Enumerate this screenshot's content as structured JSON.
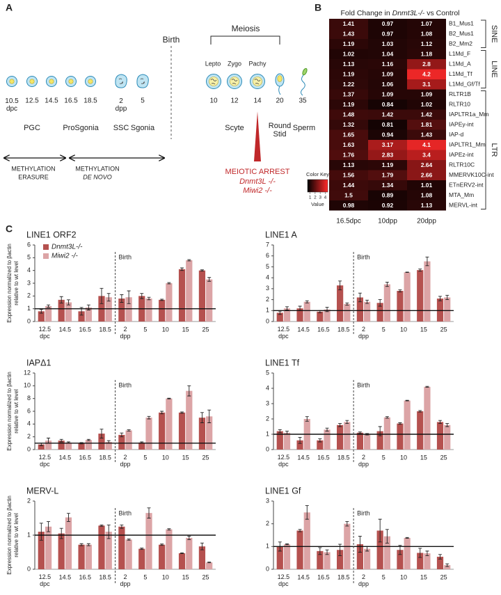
{
  "panel_labels": [
    "A",
    "B",
    "C"
  ],
  "panel_a": {
    "birth": "Birth",
    "meiosis": "Meiosis",
    "substages": [
      "Lepto",
      "Zygo",
      "Pachy"
    ],
    "stages": [
      "10.5\ndpc",
      "12.5",
      "14.5",
      "16.5",
      "18.5",
      "2\ndpp",
      "5",
      "10",
      "12",
      "14",
      "20",
      "35"
    ],
    "groups": [
      "PGC",
      "ProSgonia",
      "SSC",
      "Sgonia",
      "Scyte",
      "Round\nStid",
      "Sperm"
    ],
    "methylation": [
      {
        "title": "METHYLATION",
        "subtitle": "ERASURE"
      },
      {
        "title": "METHYLATION",
        "subtitle": "DE NOVO"
      }
    ],
    "arrest": {
      "title": "MEIOTIC ARREST",
      "mutants": [
        "Dnmt3L -/-",
        "Miwi2 -/-"
      ]
    }
  },
  "chart_data": [
    {
      "type": "heatmap",
      "title": [
        "Fold Change in ",
        "Dnmt3L-/-",
        " vs Control"
      ],
      "categories": [
        "B1_Mus1",
        "B2_Mus1",
        "B2_Mm2",
        "L1Md_F",
        "L1Md_A",
        "L1Md_Tf",
        "L1Md_Gf/Tf",
        "RLTR1B",
        "RLTR10",
        "IAPLTR1a_Mm",
        "IAPEy-int",
        "IAP-d",
        "IAPLTR1_Mm",
        "IAPEz-int",
        "RLTR10C",
        "MMERVK10C-int",
        "ETnERV2-int",
        "MTA_Mm",
        "MERVL-int"
      ],
      "columns": [
        "16.5dpc",
        "10dpp",
        "20dpp"
      ],
      "values": [
        [
          1.41,
          0.97,
          1.07
        ],
        [
          1.43,
          0.97,
          1.08
        ],
        [
          1.19,
          1.03,
          1.12
        ],
        [
          1.02,
          1.04,
          1.18
        ],
        [
          1.13,
          1.16,
          2.8
        ],
        [
          1.19,
          1.09,
          4.2
        ],
        [
          1.22,
          1.06,
          3.1
        ],
        [
          1.37,
          1.09,
          1.09
        ],
        [
          1.19,
          0.84,
          1.02
        ],
        [
          1.48,
          1.42,
          1.42
        ],
        [
          1.32,
          0.81,
          1.81
        ],
        [
          1.65,
          0.94,
          1.43
        ],
        [
          1.63,
          3.17,
          4.1
        ],
        [
          1.76,
          2.83,
          3.4
        ],
        [
          1.13,
          1.19,
          2.64
        ],
        [
          1.56,
          1.79,
          2.66
        ],
        [
          1.44,
          1.34,
          1.01
        ],
        [
          1.5,
          0.89,
          1.08
        ],
        [
          0.98,
          0.92,
          1.13
        ]
      ],
      "groups": [
        {
          "name": "SINE",
          "rows": [
            0,
            2
          ]
        },
        {
          "name": "LINE",
          "rows": [
            3,
            6
          ]
        },
        {
          "name": "LTR",
          "rows": [
            7,
            18
          ]
        }
      ],
      "clim": [
        0.5,
        4.5
      ],
      "colors": [
        "#000000",
        "#ff2a2a"
      ],
      "colorbar": {
        "title": "Color Key",
        "label": "Value",
        "ticks": [
          1,
          2,
          3,
          4
        ]
      }
    },
    {
      "type": "bar",
      "title": "LINE1 ORF2",
      "legend": true,
      "y_label": [
        "Expression normalized to βactin",
        "relative to wt level"
      ],
      "categories": [
        "12.5\ndpc",
        "14.5",
        "16.5",
        "18.5",
        "2\ndpp",
        "5",
        "10",
        "15",
        "25"
      ],
      "series": [
        {
          "name": "Dnmt3L-/-",
          "color": "#b5514f",
          "values": [
            0.8,
            1.7,
            0.8,
            2.0,
            1.8,
            2.0,
            1.7,
            4.1,
            4.0
          ],
          "errors": [
            0.15,
            0.25,
            0.3,
            0.6,
            0.3,
            0.2,
            0.05,
            0.1,
            0.05
          ]
        },
        {
          "name": "Miwi2 -/-",
          "color": "#dca4a6",
          "values": [
            1.2,
            1.5,
            1.1,
            1.9,
            1.9,
            1.8,
            3.0,
            4.8,
            3.3
          ],
          "errors": [
            0.1,
            0.2,
            0.2,
            0.3,
            0.5,
            0.1,
            0.05,
            0.05,
            0.15
          ]
        }
      ],
      "annotation": "Birth",
      "reference_line": 1,
      "ylim": [
        0,
        6
      ],
      "yticks": [
        0,
        1,
        2,
        3,
        4,
        5,
        6
      ]
    },
    {
      "type": "bar",
      "title": "LINE1 A",
      "categories": [
        "12.5\ndpc",
        "14.5",
        "16.5",
        "18.5",
        "2\ndpp",
        "5",
        "10",
        "15",
        "25"
      ],
      "series": [
        {
          "color": "#b5514f",
          "values": [
            0.8,
            1.2,
            0.9,
            3.3,
            2.2,
            1.7,
            2.8,
            4.7,
            2.1
          ],
          "errors": [
            0.15,
            0.2,
            0.1,
            0.4,
            0.4,
            0.3,
            0.1,
            0.1,
            0.2
          ]
        },
        {
          "color": "#dca4a6",
          "values": [
            1.2,
            1.8,
            1.1,
            1.6,
            1.8,
            3.4,
            4.5,
            5.5,
            2.2
          ],
          "errors": [
            0.15,
            0.1,
            0.2,
            0.1,
            0.15,
            0.2,
            0.02,
            0.4,
            0.2
          ]
        }
      ],
      "annotation": "Birth",
      "reference_line": 1,
      "ylim": [
        0,
        7
      ],
      "yticks": [
        0,
        1,
        2,
        3,
        4,
        5,
        6,
        7
      ]
    },
    {
      "type": "bar",
      "title": "IAPΔ1",
      "y_label": [
        "Expression normalized to βactin",
        "relative to wt level"
      ],
      "categories": [
        "12.5\ndpc",
        "14.5",
        "16.5",
        "18.5",
        "2\ndpp",
        "5",
        "10",
        "15",
        "25"
      ],
      "series": [
        {
          "color": "#b5514f",
          "values": [
            0.8,
            1.4,
            1.0,
            2.5,
            2.3,
            1.1,
            5.8,
            5.8,
            5.0
          ],
          "errors": [
            0.2,
            0.2,
            0.1,
            0.7,
            0.3,
            0.1,
            0.2,
            0.1,
            0.8
          ]
        },
        {
          "color": "#dca4a6",
          "values": [
            1.4,
            1.1,
            1.5,
            1.2,
            3.0,
            5.0,
            8.0,
            9.2,
            5.2
          ],
          "errors": [
            0.4,
            0.1,
            0.1,
            0.2,
            0.1,
            0.2,
            0.05,
            0.8,
            1.0
          ]
        }
      ],
      "annotation": "Birth",
      "reference_line": 1,
      "ylim": [
        0,
        12
      ],
      "yticks": [
        0,
        2,
        4,
        6,
        8,
        10,
        12
      ]
    },
    {
      "type": "bar",
      "title": "LINE1 Tf",
      "categories": [
        "12.5\ndpc",
        "14.5",
        "16.5",
        "18.5",
        "2\ndpp",
        "5",
        "10",
        "15",
        "25"
      ],
      "series": [
        {
          "color": "#b5514f",
          "values": [
            1.2,
            0.6,
            0.6,
            1.6,
            1.1,
            1.2,
            1.7,
            2.5,
            1.8
          ],
          "errors": [
            0.1,
            0.2,
            0.1,
            0.1,
            0.05,
            0.3,
            0.05,
            0.05,
            0.1
          ]
        },
        {
          "color": "#dca4a6",
          "values": [
            1.1,
            2.0,
            1.3,
            1.8,
            1.0,
            2.1,
            3.2,
            4.1,
            1.6
          ],
          "errors": [
            0.1,
            0.15,
            0.1,
            0.1,
            0.05,
            0.05,
            0.02,
            0.03,
            0.1
          ]
        }
      ],
      "annotation": "Birth",
      "reference_line": 1,
      "ylim": [
        0,
        5
      ],
      "yticks": [
        0,
        1,
        2,
        3,
        4,
        5
      ]
    },
    {
      "type": "bar",
      "title": "MERV-L",
      "y_label": [
        "Expression normalized to βactin",
        "relative to wt level"
      ],
      "categories": [
        "12.5\ndpc",
        "14.5",
        "16.5",
        "18.5",
        "2\ndpp",
        "5",
        "10",
        "15",
        "25"
      ],
      "series": [
        {
          "color": "#b5514f",
          "values": [
            1.1,
            1.05,
            0.72,
            1.28,
            1.25,
            0.6,
            0.72,
            0.47,
            0.67
          ],
          "errors": [
            0.25,
            0.15,
            0.03,
            0.02,
            0.05,
            0.02,
            0.02,
            0.01,
            0.1
          ]
        },
        {
          "color": "#dca4a6",
          "values": [
            1.25,
            1.52,
            0.72,
            1.1,
            0.87,
            1.65,
            1.17,
            0.92,
            0.2
          ],
          "errors": [
            0.15,
            0.12,
            0.03,
            0.2,
            0.02,
            0.15,
            0.02,
            0.05,
            0.01
          ]
        }
      ],
      "annotation": "Birth",
      "reference_line": 1,
      "ylim": [
        0,
        2
      ],
      "yticks": [
        0,
        1,
        2
      ]
    },
    {
      "type": "bar",
      "title": "LINE1 Gf",
      "categories": [
        "12.5\ndpc",
        "14.5",
        "16.5",
        "18.5",
        "2\ndpp",
        "5",
        "10",
        "15",
        "25"
      ],
      "series": [
        {
          "color": "#b5514f",
          "values": [
            1.0,
            1.7,
            0.8,
            0.85,
            1.1,
            1.7,
            0.85,
            0.72,
            0.55
          ],
          "errors": [
            0.2,
            0.05,
            0.15,
            0.25,
            0.35,
            0.5,
            0.2,
            0.2,
            0.1
          ]
        },
        {
          "color": "#dca4a6",
          "values": [
            1.1,
            2.5,
            0.75,
            2.0,
            0.9,
            1.45,
            1.38,
            0.7,
            0.18
          ],
          "errors": [
            0.02,
            0.3,
            0.1,
            0.1,
            0.1,
            0.3,
            0.02,
            0.1,
            0.06
          ]
        }
      ],
      "annotation": "Birth",
      "reference_line": 1,
      "ylim": [
        0,
        3
      ],
      "yticks": [
        0,
        1,
        2,
        3
      ]
    }
  ]
}
